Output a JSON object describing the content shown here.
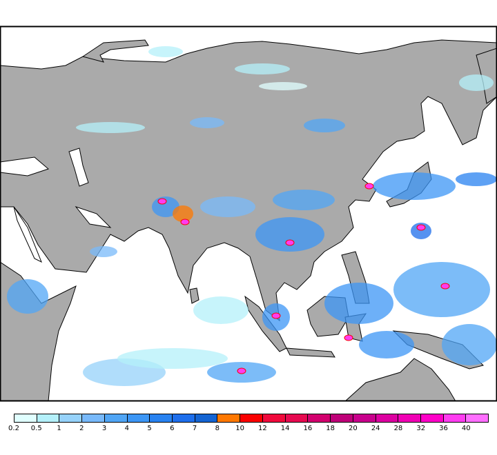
{
  "map": {
    "region": "Asia / Indian Ocean / Western Pacific",
    "land_color": "#aaaaaa",
    "ocean_color": "#ffffff",
    "border_color": "#000000"
  },
  "colorbar": {
    "labels": [
      "0.2",
      "0.5",
      "1",
      "2",
      "3",
      "4",
      "5",
      "6",
      "7",
      "8",
      "10",
      "12",
      "14",
      "16",
      "18",
      "20",
      "24",
      "28",
      "32",
      "36",
      "40"
    ],
    "colors": [
      "#e0ffff",
      "#b4f0fa",
      "#96d2fa",
      "#78b9fa",
      "#50a5f5",
      "#3c96f5",
      "#2882f0",
      "#1e6eeb",
      "#1464d2",
      "#ff7800",
      "#fa0000",
      "#f00a3c",
      "#e60a50",
      "#d2006e",
      "#be0078",
      "#c8008c",
      "#dc00a0",
      "#f000b4",
      "#ff00c8",
      "#ff3cf0",
      "#ff6eff"
    ]
  }
}
